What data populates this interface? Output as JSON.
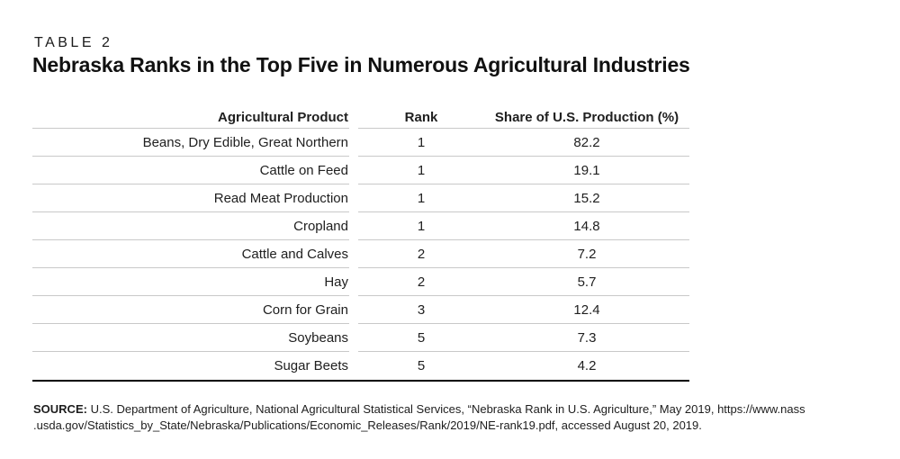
{
  "page": {
    "eyebrow": "TABLE 2",
    "title": "Nebraska Ranks in the Top Five in Numerous Agricultural Industries"
  },
  "table": {
    "columns": [
      "Agricultural Product",
      "Rank",
      "Share of U.S. Production (%)"
    ],
    "rows": [
      {
        "product": "Beans, Dry Edible, Great Northern",
        "rank": "1",
        "share": "82.2"
      },
      {
        "product": "Cattle on Feed",
        "rank": "1",
        "share": "19.1"
      },
      {
        "product": "Read Meat Production",
        "rank": "1",
        "share": "15.2"
      },
      {
        "product": "Cropland",
        "rank": "1",
        "share": "14.8"
      },
      {
        "product": "Cattle and Calves",
        "rank": "2",
        "share": "7.2"
      },
      {
        "product": "Hay",
        "rank": "2",
        "share": "5.7"
      },
      {
        "product": "Corn for Grain",
        "rank": "3",
        "share": "12.4"
      },
      {
        "product": "Soybeans",
        "rank": "5",
        "share": "7.3"
      },
      {
        "product": "Sugar Beets",
        "rank": "5",
        "share": "4.2"
      }
    ]
  },
  "source": {
    "label": "SOURCE:",
    "line1": " U.S. Department of Agriculture, National Agricultural Statistical Services, “Nebraska Rank in U.S. Agriculture,” May 2019, https://www.nass",
    "line2": ".usda.gov/Statistics_by_State/Nebraska/Publications/Economic_Releases/Rank/2019/NE-rank19.pdf, accessed August 20, 2019."
  },
  "colors": {
    "text": "#1d1d1d",
    "rule_light": "#c9c9c9",
    "rule_heavy": "#000000",
    "background": "#ffffff"
  }
}
